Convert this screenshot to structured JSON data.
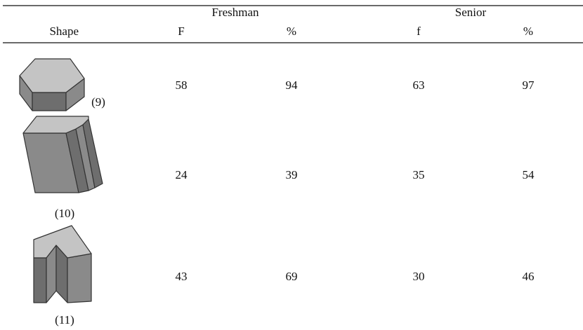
{
  "table": {
    "groups": [
      "Freshman",
      "Senior"
    ],
    "columns": [
      "Shape",
      "F",
      "%",
      "f",
      "%"
    ],
    "rows": [
      {
        "label": "(9)",
        "cells": [
          58,
          94,
          63,
          97
        ]
      },
      {
        "label": "(10)",
        "cells": [
          24,
          39,
          35,
          54
        ]
      },
      {
        "label": "(11)",
        "cells": [
          43,
          69,
          30,
          46
        ]
      }
    ]
  }
}
